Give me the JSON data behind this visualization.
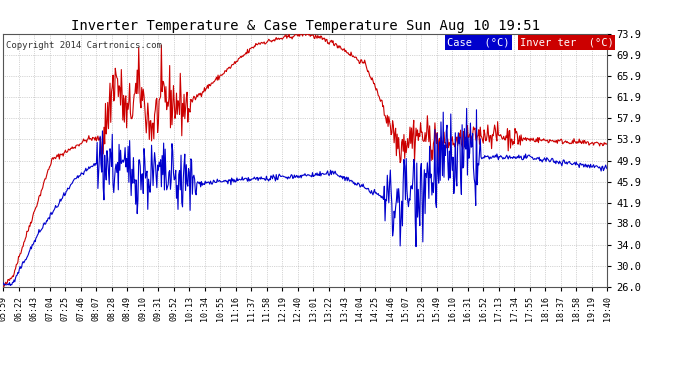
{
  "title": "Inverter Temperature & Case Temperature Sun Aug 10 19:51",
  "copyright": "Copyright 2014 Cartronics.com",
  "ylabel_right_ticks": [
    26.0,
    30.0,
    34.0,
    38.0,
    41.9,
    45.9,
    49.9,
    53.9,
    57.9,
    61.9,
    65.9,
    69.9,
    73.9
  ],
  "ylim": [
    26.0,
    73.9
  ],
  "background_color": "#ffffff",
  "grid_color": "#999999",
  "case_color": "#0000cc",
  "inverter_color": "#cc0000",
  "legend_case_bg": "#0000cc",
  "legend_inverter_bg": "#cc0000",
  "x_tick_labels": [
    "05:59",
    "06:22",
    "06:43",
    "07:04",
    "07:25",
    "07:46",
    "08:07",
    "08:28",
    "08:49",
    "09:10",
    "09:31",
    "09:52",
    "10:13",
    "10:34",
    "10:55",
    "11:16",
    "11:37",
    "11:58",
    "12:19",
    "12:40",
    "13:01",
    "13:22",
    "13:43",
    "14:04",
    "14:25",
    "14:46",
    "15:07",
    "15:28",
    "15:49",
    "16:10",
    "16:31",
    "16:52",
    "17:13",
    "17:34",
    "17:55",
    "18:16",
    "18:37",
    "18:58",
    "19:19",
    "19:40"
  ]
}
